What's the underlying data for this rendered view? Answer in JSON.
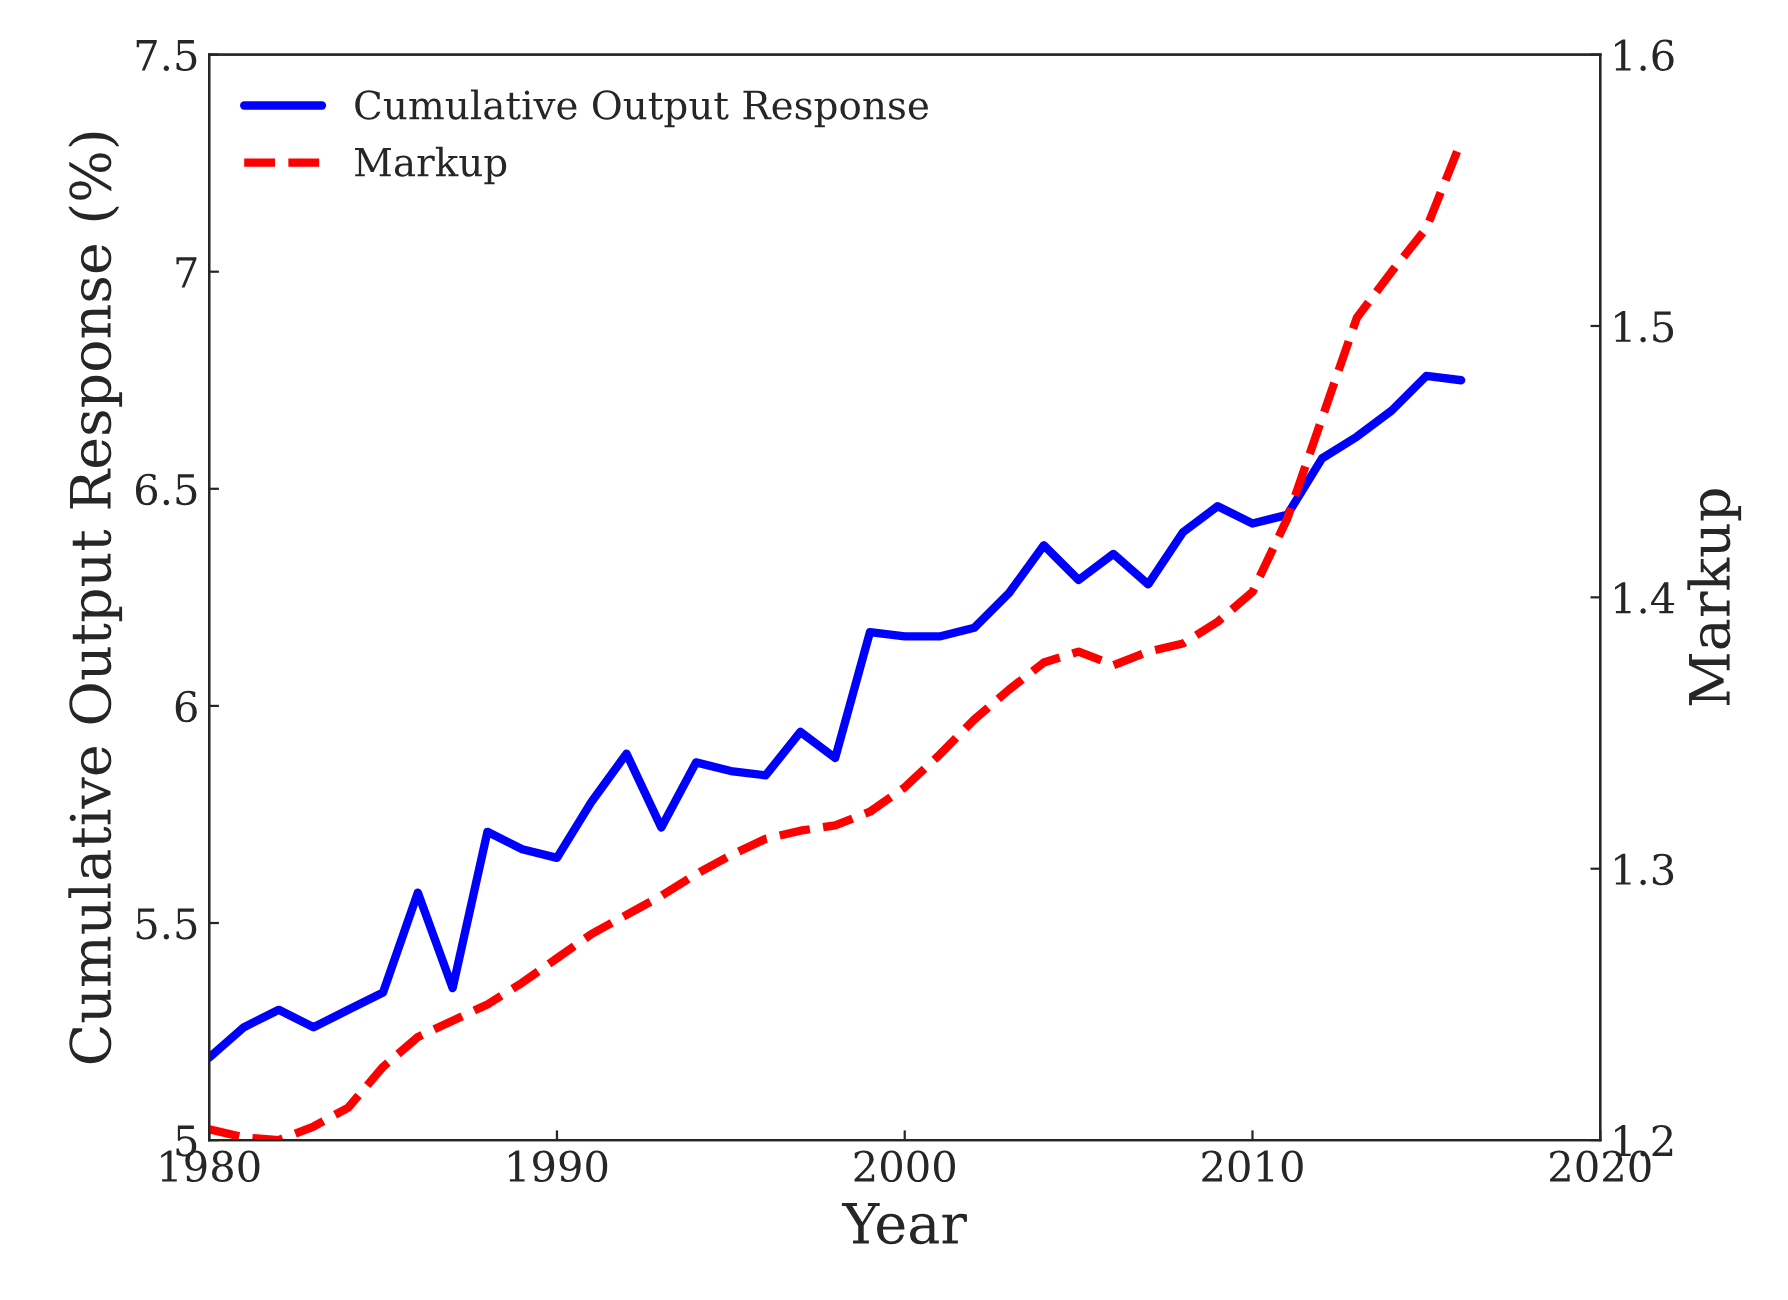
{
  "chart_data": {
    "type": "line",
    "xlabel": "Year",
    "ylabel": "Cumulative Output Response (%)",
    "y2label": "Markup",
    "x": [
      1980,
      1981,
      1982,
      1983,
      1984,
      1985,
      1986,
      1987,
      1988,
      1989,
      1990,
      1991,
      1992,
      1993,
      1994,
      1995,
      1996,
      1997,
      1998,
      1999,
      2000,
      2001,
      2002,
      2003,
      2004,
      2005,
      2006,
      2007,
      2008,
      2009,
      2010,
      2011,
      2012,
      2013,
      2014,
      2015,
      2016
    ],
    "series": [
      {
        "name": "Cumulative Output Response",
        "color": "#0000ff",
        "line_style": "solid",
        "values": [
          5.19,
          5.26,
          5.3,
          5.26,
          5.3,
          5.34,
          5.57,
          5.35,
          5.71,
          5.67,
          5.65,
          5.78,
          5.89,
          5.72,
          5.87,
          5.85,
          5.84,
          5.94,
          5.88,
          6.17,
          6.16,
          6.16,
          6.18,
          6.26,
          6.37,
          6.29,
          6.35,
          6.28,
          6.4,
          6.46,
          6.42,
          6.44,
          6.57,
          6.62,
          6.68,
          6.76,
          6.75
        ]
      },
      {
        "name": "Markup",
        "color": "#ff0000",
        "line_style": "dashed",
        "axis": "y2",
        "values": [
          1.204,
          1.201,
          1.2,
          1.205,
          1.212,
          1.227,
          1.238,
          1.244,
          1.25,
          1.258,
          1.267,
          1.276,
          1.283,
          1.29,
          1.298,
          1.305,
          1.311,
          1.314,
          1.316,
          1.321,
          1.33,
          1.342,
          1.355,
          1.366,
          1.376,
          1.38,
          1.375,
          1.38,
          1.383,
          1.391,
          1.402,
          1.429,
          1.466,
          1.503,
          1.52,
          1.536,
          1.568
        ]
      }
    ],
    "xlim": [
      1980,
      2020
    ],
    "xticks": [
      1980,
      1990,
      2000,
      2010,
      2020
    ],
    "ylim": [
      5,
      7.5
    ],
    "yticks": [
      5,
      5.5,
      6,
      6.5,
      7,
      7.5
    ],
    "y2lim": [
      1.2,
      1.6
    ],
    "y2ticks": [
      1.2,
      1.3,
      1.4,
      1.5,
      1.6
    ],
    "grid": false,
    "legend": "top left",
    "marker": "none"
  }
}
